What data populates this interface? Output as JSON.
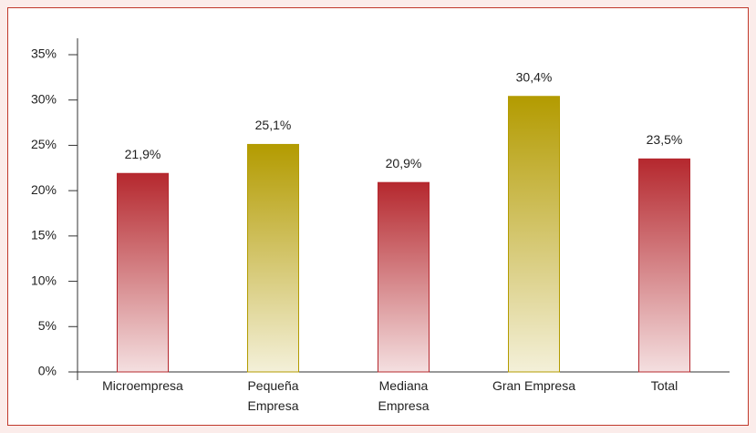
{
  "chart_data": {
    "type": "bar",
    "categories": [
      "Microempresa",
      "Pequeña Empresa",
      "Mediana Empresa",
      "Gran Empresa",
      "Total"
    ],
    "values": [
      21.9,
      25.1,
      20.9,
      30.4,
      23.5
    ],
    "value_labels": [
      "21,9%",
      "25,1%",
      "20,9%",
      "30,4%",
      "23,5%"
    ],
    "colors": [
      "#b5282e",
      "#b39b00",
      "#b5282e",
      "#b39b00",
      "#b5282e"
    ],
    "ylim": [
      0,
      35
    ],
    "yticks": [
      {
        "value": 0,
        "label": "0%"
      },
      {
        "value": 5,
        "label": "5%"
      },
      {
        "value": 10,
        "label": "10%"
      },
      {
        "value": 15,
        "label": "15%"
      },
      {
        "value": 20,
        "label": "20%"
      },
      {
        "value": 25,
        "label": "25%"
      },
      {
        "value": 30,
        "label": "30%"
      },
      {
        "value": 35,
        "label": "35%"
      }
    ]
  }
}
